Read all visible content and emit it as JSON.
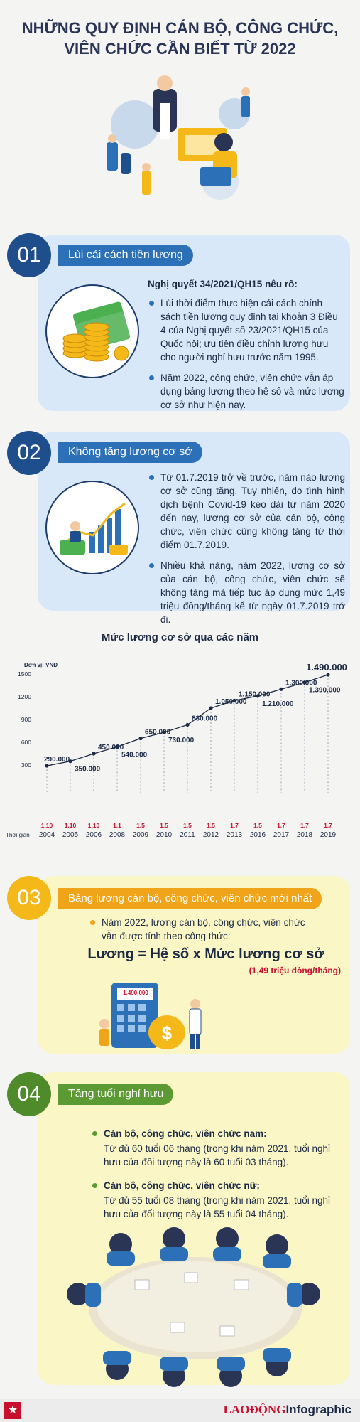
{
  "title_line1": "NHỮNG QUY ĐỊNH CÁN BỘ, CÔNG CHỨC,",
  "title_line2": "VIÊN CHỨC CẦN BIẾT TỪ 2022",
  "s1": {
    "num": "01",
    "tag": "Lùi cải cách tiền lương",
    "lead": "Nghị quyết 34/2021/QH15 nêu rõ:",
    "b1": "Lùi thời điểm thực hiện cải cách chính sách tiền lương quy định tại khoản 3 Điều 4 của Nghị quyết số 23/2021/QH15 của Quốc hội; ưu tiên điều chỉnh lương hưu cho người nghỉ hưu trước năm 1995.",
    "b2": "Năm 2022, công chức, viên chức vẫn áp dụng bảng lương theo hệ số và mức lương cơ sở như hiện nay."
  },
  "s2": {
    "num": "02",
    "tag": "Không tăng lương cơ sở",
    "b1": "Từ 01.7.2019 trở về trước, năm nào lương cơ sở cũng tăng. Tuy nhiên, do tình hình dịch bệnh Covid-19 kéo dài từ năm 2020 đến nay, lương cơ sở của cán bộ, công chức, viên chức cũng không tăng từ thời điểm 01.7.2019.",
    "b2": "Nhiều khả năng, năm 2022, lương cơ sở của cán bộ, công chức, viên chức sẽ không tăng mà tiếp tục áp dụng mức 1,49 triệu đồng/tháng kể từ ngày 01.7.2019 trở đi."
  },
  "chart_data": {
    "type": "line",
    "title": "Mức lương cơ sở qua các năm",
    "unit_label": "Đơn vị: VNĐ",
    "time_label": "Thời gian",
    "dates": [
      "1.10",
      "1.10",
      "1.10",
      "1.1",
      "1.5",
      "1.5",
      "1.5",
      "1.5",
      "1.7",
      "1.5",
      "1.7",
      "1.7",
      "1.7"
    ],
    "categories": [
      "2004",
      "2005",
      "2006",
      "2008",
      "2009",
      "2010",
      "2011",
      "2012",
      "2013",
      "2016",
      "2017",
      "2018",
      "2019"
    ],
    "values": [
      290000,
      350000,
      450000,
      540000,
      650000,
      730000,
      830000,
      1050000,
      1150000,
      1210000,
      1300000,
      1390000,
      1490000
    ],
    "value_labels": [
      "290.000",
      "350.000",
      "450.000",
      "540.000",
      "650.000",
      "730.000",
      "830.000",
      "1.050.000",
      "1.150.000",
      "1.210.000",
      "1.300.000",
      "1.390.000",
      "1.490.000"
    ],
    "y_ticks": [
      "1500",
      "1200",
      "900",
      "600",
      "300"
    ],
    "ylim": [
      0,
      1500
    ]
  },
  "s3": {
    "num": "03",
    "tag": "Bảng lương cán bộ, công chức, viên chức mới nhất",
    "b1": "Năm 2022, lương cán bộ, công chức, viên chức vẫn được tính theo công thức:",
    "formula": "Lương = Hệ số x Mức lương cơ sở",
    "formula_note": "(1,49 triệu đồng/tháng)",
    "screen_value": "1.490.000"
  },
  "s4": {
    "num": "04",
    "tag": "Tăng tuổi nghỉ hưu",
    "h1": "Cán bộ, công chức, viên chức nam:",
    "t1": "Từ đủ 60 tuổi 06 tháng (trong khi năm 2021, tuổi nghỉ hưu của đối tượng này là 60 tuổi 03 tháng).",
    "h2": "Cán bộ, công chức, viên chức nữ:",
    "t2": "Từ đủ 55 tuổi 08 tháng (trong khi năm 2021, tuổi nghỉ hưu của đối tượng này là 55 tuổi 04 tháng)."
  },
  "footer": {
    "brand": "LAOĐỘNG",
    "suffix": "Infographic"
  },
  "colors": {
    "navy": "#1e4f8c",
    "blue": "#2c70b8",
    "yellow": "#f0a41a",
    "green": "#5c9a33",
    "red": "#c8102e"
  }
}
